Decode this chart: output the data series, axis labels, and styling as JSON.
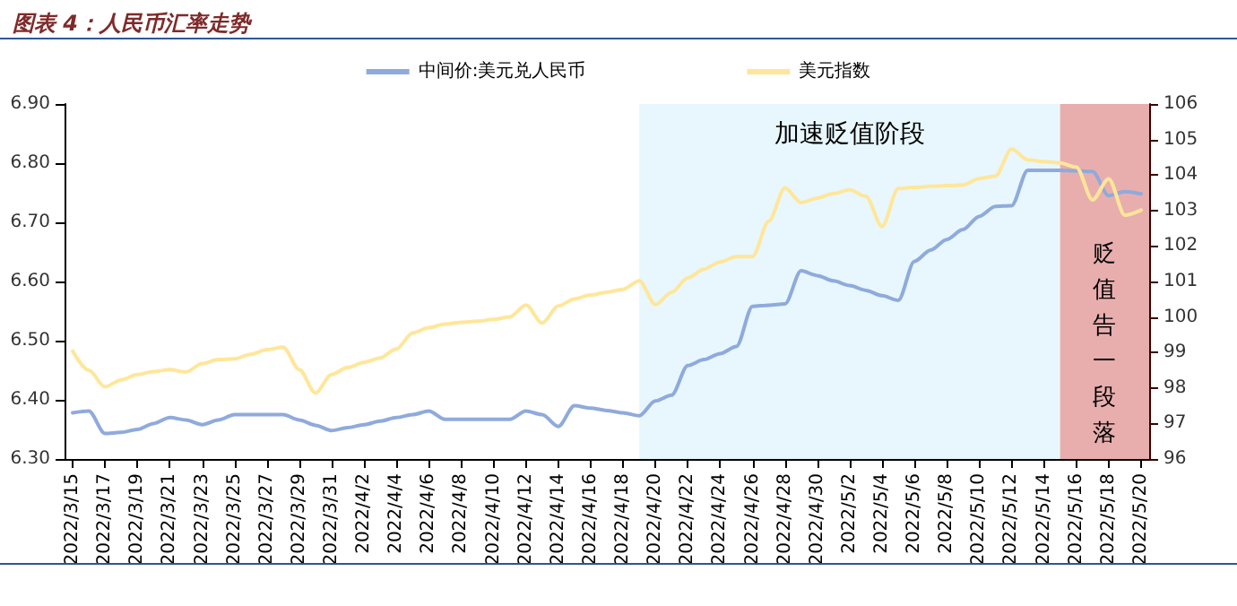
{
  "chart_data": {
    "type": "line",
    "title": "图表 4：人民币汇率走势",
    "x": [
      "2022-03-15",
      "2022-03-16",
      "2022-03-17",
      "2022-03-18",
      "2022-03-19",
      "2022-03-20",
      "2022-03-21",
      "2022-03-22",
      "2022-03-23",
      "2022-03-24",
      "2022-03-25",
      "2022-03-26",
      "2022-03-27",
      "2022-03-28",
      "2022-03-29",
      "2022-03-30",
      "2022-03-31",
      "2022-04-01",
      "2022-04-02",
      "2022-04-03",
      "2022-04-04",
      "2022-04-05",
      "2022-04-06",
      "2022-04-07",
      "2022-04-08",
      "2022-04-09",
      "2022-04-10",
      "2022-04-11",
      "2022-04-12",
      "2022-04-13",
      "2022-04-14",
      "2022-04-15",
      "2022-04-16",
      "2022-04-17",
      "2022-04-18",
      "2022-04-19",
      "2022-04-20",
      "2022-04-21",
      "2022-04-22",
      "2022-04-23",
      "2022-04-24",
      "2022-04-25",
      "2022-04-26",
      "2022-04-27",
      "2022-04-28",
      "2022-04-29",
      "2022-04-30",
      "2022-05-01",
      "2022-05-02",
      "2022-05-03",
      "2022-05-04",
      "2022-05-05",
      "2022-05-06",
      "2022-05-07",
      "2022-05-08",
      "2022-05-09",
      "2022-05-10",
      "2022-05-11",
      "2022-05-12",
      "2022-05-13",
      "2022-05-14",
      "2022-05-15",
      "2022-05-16",
      "2022-05-17",
      "2022-05-18",
      "2022-05-19",
      "2022-05-20"
    ],
    "series": [
      {
        "name": "中间价:美元兑人民币",
        "color": "#8faadc",
        "values": [
          6.378,
          6.381,
          6.343,
          6.345,
          6.35,
          6.36,
          6.37,
          6.366,
          6.358,
          6.366,
          6.375,
          6.375,
          6.375,
          6.375,
          6.366,
          6.357,
          6.348,
          6.353,
          6.358,
          6.364,
          6.37,
          6.375,
          6.381,
          6.367,
          6.367,
          6.367,
          6.367,
          6.367,
          6.381,
          6.375,
          6.355,
          6.39,
          6.386,
          6.382,
          6.378,
          6.373,
          6.398,
          6.408,
          6.458,
          6.468,
          6.478,
          6.49,
          6.558,
          6.56,
          6.562,
          6.618,
          6.61,
          6.601,
          6.593,
          6.585,
          6.576,
          6.568,
          6.634,
          6.653,
          6.671,
          6.688,
          6.71,
          6.727,
          6.728,
          6.788,
          6.788,
          6.788,
          6.787,
          6.786,
          6.745,
          6.752,
          6.748
        ]
      },
      {
        "name": "美元指数",
        "color": "#ffe699",
        "axis": "y2",
        "values": [
          99.04,
          98.5,
          98.03,
          98.23,
          98.38,
          98.46,
          98.52,
          98.45,
          98.69,
          98.8,
          98.82,
          98.95,
          99.08,
          99.15,
          98.52,
          97.86,
          98.38,
          98.58,
          98.72,
          98.85,
          99.1,
          99.55,
          99.7,
          99.8,
          99.85,
          99.88,
          99.93,
          100.0,
          100.34,
          99.83,
          100.31,
          100.51,
          100.62,
          100.7,
          100.78,
          101.02,
          100.35,
          100.7,
          101.1,
          101.35,
          101.55,
          101.7,
          101.7,
          102.7,
          103.64,
          103.22,
          103.35,
          103.48,
          103.58,
          103.4,
          102.55,
          103.62,
          103.65,
          103.68,
          103.7,
          103.72,
          103.9,
          103.97,
          104.73,
          104.43,
          104.38,
          104.34,
          104.22,
          103.3,
          103.89,
          102.87,
          103.01
        ]
      }
    ],
    "xlim": [
      "2022-03-14T12:00",
      "2022-05-20T12:00"
    ],
    "xticks": [
      {
        "value": "2022-03-15",
        "label": "2022/3/15"
      },
      {
        "value": "2022-03-17",
        "label": "2022/3/17"
      },
      {
        "value": "2022-03-19",
        "label": "2022/3/19"
      },
      {
        "value": "2022-03-21",
        "label": "2022/3/21"
      },
      {
        "value": "2022-03-23",
        "label": "2022/3/23"
      },
      {
        "value": "2022-03-25",
        "label": "2022/3/25"
      },
      {
        "value": "2022-03-27",
        "label": "2022/3/27"
      },
      {
        "value": "2022-03-29",
        "label": "2022/3/29"
      },
      {
        "value": "2022-03-31",
        "label": "2022/3/31"
      },
      {
        "value": "2022-04-02",
        "label": "2022/4/2"
      },
      {
        "value": "2022-04-04",
        "label": "2022/4/4"
      },
      {
        "value": "2022-04-06",
        "label": "2022/4/6"
      },
      {
        "value": "2022-04-08",
        "label": "2022/4/8"
      },
      {
        "value": "2022-04-10",
        "label": "2022/4/10"
      },
      {
        "value": "2022-04-12",
        "label": "2022/4/12"
      },
      {
        "value": "2022-04-14",
        "label": "2022/4/14"
      },
      {
        "value": "2022-04-16",
        "label": "2022/4/16"
      },
      {
        "value": "2022-04-18",
        "label": "2022/4/18"
      },
      {
        "value": "2022-04-20",
        "label": "2022/4/20"
      },
      {
        "value": "2022-04-22",
        "label": "2022/4/22"
      },
      {
        "value": "2022-04-24",
        "label": "2022/4/24"
      },
      {
        "value": "2022-04-26",
        "label": "2022/4/26"
      },
      {
        "value": "2022-04-28",
        "label": "2022/4/28"
      },
      {
        "value": "2022-04-30",
        "label": "2022/4/30"
      },
      {
        "value": "2022-05-02",
        "label": "2022/5/2"
      },
      {
        "value": "2022-05-04",
        "label": "2022/5/4"
      },
      {
        "value": "2022-05-06",
        "label": "2022/5/6"
      },
      {
        "value": "2022-05-08",
        "label": "2022/5/8"
      },
      {
        "value": "2022-05-10",
        "label": "2022/5/10"
      },
      {
        "value": "2022-05-12",
        "label": "2022/5/12"
      },
      {
        "value": "2022-05-14",
        "label": "2022/5/14"
      },
      {
        "value": "2022-05-16",
        "label": "2022/5/16"
      },
      {
        "value": "2022-05-18",
        "label": "2022/5/18"
      },
      {
        "value": "2022-05-20",
        "label": "2022/5/20"
      }
    ],
    "ylim": [
      6.3,
      6.9
    ],
    "yticks": [
      {
        "value": 6.3,
        "label": "6.30"
      },
      {
        "value": 6.4,
        "label": "6.40"
      },
      {
        "value": 6.5,
        "label": "6.50"
      },
      {
        "value": 6.6,
        "label": "6.60"
      },
      {
        "value": 6.7,
        "label": "6.70"
      },
      {
        "value": 6.8,
        "label": "6.80"
      },
      {
        "value": 6.9,
        "label": "6.90"
      }
    ],
    "y2lim": [
      96,
      106
    ],
    "y2ticks": [
      96,
      97,
      98,
      99,
      100,
      101,
      102,
      103,
      104,
      105,
      106
    ],
    "bands": [
      {
        "axis": "x",
        "from": "2022-04-19",
        "to": "2022-05-15",
        "label": "加速贬值阶段",
        "color": "#e8f7fd"
      },
      {
        "axis": "x",
        "from": "2022-05-15",
        "to": "2022-05-20T12:00",
        "label": "贬值告一段落",
        "color": "#e8aeae"
      }
    ],
    "legend": "top",
    "grid": false,
    "marker": "none",
    "line_style": "solid"
  }
}
